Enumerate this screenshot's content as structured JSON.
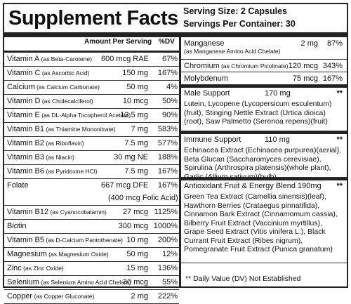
{
  "title": "Supplement Facts",
  "serving_size": "Serving Size: 2 Capsules",
  "servings_per_container": "Servings Per Container: 30",
  "headers": {
    "amount": "Amount Per Serving",
    "dv": "%DV"
  },
  "left_rows": [
    {
      "name": "Vitamin A",
      "source": "(as Beta-Carotene)",
      "amount": "600 mcg RAE",
      "dv": "67%"
    },
    {
      "name": "Vitamin C",
      "source": "(as Ascorbic Acid)",
      "amount": "150 mg",
      "dv": "167%"
    },
    {
      "name": "Calcium",
      "source": "(as Calcium Carbonate)",
      "amount": "50 mg",
      "dv": "4%"
    },
    {
      "name": "Vitamin D",
      "source": "(as Cholecalciferol)",
      "amount": "10 mcg",
      "dv": "50%"
    },
    {
      "name": "Vitamin E",
      "source": "(as DL-Alpha Tocopherol Acetate)",
      "amount": "13.5 mg",
      "dv": "90%"
    },
    {
      "name": "Vitamin B1",
      "source": "(as Thiamine Mononitrate)",
      "amount": "7 mg",
      "dv": "583%"
    },
    {
      "name": "Vitamin B2",
      "source": "(as Riboflavin)",
      "amount": "7.5 mg",
      "dv": "577%"
    },
    {
      "name": "Vitamin B3",
      "source": "(as Niacin)",
      "amount": "30 mg NE",
      "dv": "188%"
    },
    {
      "name": "Vitamin B6",
      "source": "(as Pyridoxine HCl)",
      "amount": "7.5 mg",
      "dv": "167%"
    },
    {
      "name": "Folate",
      "source": "",
      "amount": "667 mcg DFE",
      "dv": "167%",
      "note": "(400 mcg Folic Acid)"
    },
    {
      "name": "Vitamin B12",
      "source": "(as Cyanocobalamin)",
      "amount": "27 mcg",
      "dv": "1125%"
    },
    {
      "name": "Biotin",
      "source": "",
      "amount": "300 mcg",
      "dv": "1000%"
    },
    {
      "name": "Vitamin B5",
      "source": "(as D-Calcium Pantothenate)",
      "amount": "10 mg",
      "dv": "200%"
    },
    {
      "name": "Magnesium",
      "source": "(as Magnesium Oxide)",
      "amount": "50 mg",
      "dv": "12%"
    },
    {
      "name": "Zinc",
      "source": "(as Zinc Oxide)",
      "amount": "15 mg",
      "dv": "136%"
    },
    {
      "name": "Selenium",
      "source": "(as Selenium Amino Acid Chelate)",
      "amount": "30 mcg",
      "dv": "55%"
    },
    {
      "name": "Copper",
      "source": "(as Copper Gluconate)",
      "amount": "2 mg",
      "dv": "222%"
    }
  ],
  "right_rows": [
    {
      "name": "Manganese",
      "source": "(as Manganese Amino Acid Chelate)",
      "amount": "2 mg",
      "dv": "87%"
    },
    {
      "name": "Chromium",
      "source": "(as Chromium Picolinate)",
      "amount": "120 mcg",
      "dv": "343%"
    },
    {
      "name": "Molybdenum",
      "source": "",
      "amount": "75 mcg",
      "dv": "167%"
    }
  ],
  "sections": [
    {
      "name": "Male Support",
      "amount": "170 mg",
      "star": "**",
      "text": "Lutein, Lycopene (Lycopersicum esculentum)(fruit), Stinging Nettle Extract (Urtica dioica)(root), Saw Palmetto (Serenoa repens)(fruit)"
    },
    {
      "name": "Immune Support",
      "amount": "110 mg",
      "star": "**",
      "text": "Echinacea Extract (Echinacea purpurea)(aerial), Beta Glucan (Saccharomyces cerevisiae), Spirulina (Arthrospira platensis)(whole plant), Garlic (Allium sativum)(bulb)"
    },
    {
      "name": "Antioxidant Fruit & Energy Blend",
      "amount": "190mg",
      "star": "**",
      "text": "Green Tea Extract (Camellia sinensis)(leaf), Hawthorn Berries (Crataegus pinnatifida), Cinnamon Bark Extract (Cinnamomum cassia), Bilberry Fruit Extract (Vaccinium myrtillus), Grape Seed Extract (Vitis vinifera L.), Black Currant Fruit Extract (Ribes nigrum), Pomegranate Fruit Extract (Punica granatum)"
    }
  ],
  "footnote": "** Daily Value (DV) Not Established"
}
